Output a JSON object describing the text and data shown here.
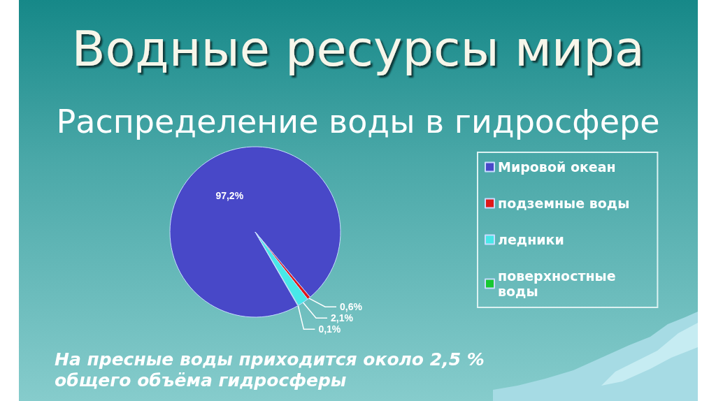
{
  "chart_data": {
    "type": "pie",
    "title": "Водные ресурсы мира",
    "subtitle": "Распределение воды в гидросфере",
    "categories": [
      "Мировой океан",
      "подземные воды",
      "ледники",
      "поверхностные воды"
    ],
    "values": [
      97.2,
      0.6,
      2.1,
      0.1
    ],
    "value_labels": [
      "97,2%",
      "0,6%",
      "2,1%",
      "0,1%"
    ],
    "colors": [
      "#4848c8",
      "#e01818",
      "#48e8e8",
      "#18c830"
    ],
    "legend": "right",
    "annotations": [
      "На пресные воды приходится около 2,5 % общего объёма гидросферы"
    ]
  }
}
